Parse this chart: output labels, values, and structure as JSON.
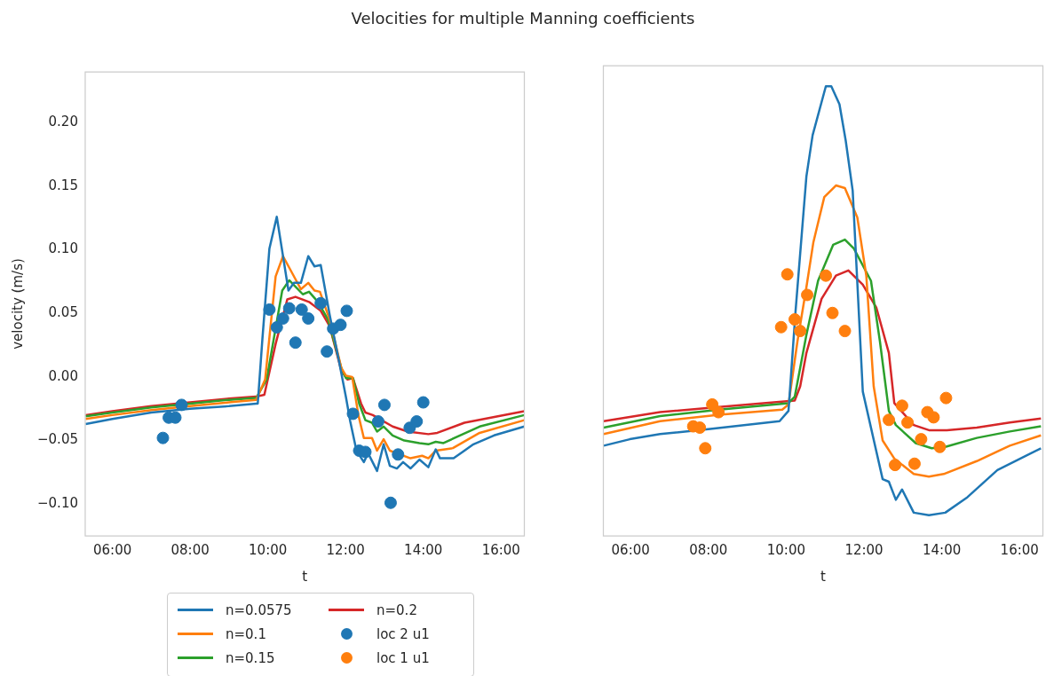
{
  "chart_data": [
    {
      "type": "line",
      "title": "Velocities for multiple Manning coefficients",
      "xlabel": "t",
      "ylabel": "velocity (m/s)",
      "xlim": [
        5.3,
        16.6
      ],
      "ylim": [
        -0.125,
        0.24
      ],
      "xticks": [
        {
          "value": 6,
          "label": "06:00"
        },
        {
          "value": 8,
          "label": "08:00"
        },
        {
          "value": 10,
          "label": "10:00"
        },
        {
          "value": 12,
          "label": "12:00"
        },
        {
          "value": 14,
          "label": "14:00"
        },
        {
          "value": 16,
          "label": "16:00"
        }
      ],
      "yticks": [
        {
          "value": -0.1,
          "label": "−0.10"
        },
        {
          "value": -0.05,
          "label": "−0.05"
        },
        {
          "value": 0,
          "label": "0.00"
        },
        {
          "value": 0.05,
          "label": "0.05"
        },
        {
          "value": 0.1,
          "label": "0.10"
        },
        {
          "value": 0.15,
          "label": "0.15"
        },
        {
          "value": 0.2,
          "label": "0.20"
        }
      ],
      "grid": false,
      "legend": "bottom",
      "line_style": "solid",
      "series": [
        {
          "name": "n=0.0575",
          "color": "#1f77b4",
          "x": [
            5.31,
            6,
            7,
            8,
            9,
            9.7,
            9.74,
            9.86,
            10.04,
            10.23,
            10.53,
            10.67,
            10.85,
            11.04,
            11.2,
            11.36,
            11.59,
            11.82,
            12.01,
            12.12,
            12.28,
            12.47,
            12.58,
            12.81,
            12.98,
            13.14,
            13.32,
            13.48,
            13.67,
            13.9,
            14.13,
            14.32,
            14.43,
            14.78,
            15.29,
            15.82,
            16.6
          ],
          "values": [
            -0.037,
            -0.033,
            -0.028,
            -0.025,
            -0.023,
            -0.021,
            -0.021,
            0.03,
            0.101,
            0.126,
            0.068,
            0.074,
            0.074,
            0.095,
            0.087,
            0.088,
            0.049,
            0.014,
            -0.016,
            -0.035,
            -0.058,
            -0.067,
            -0.06,
            -0.074,
            -0.053,
            -0.07,
            -0.072,
            -0.067,
            -0.072,
            -0.065,
            -0.071,
            -0.057,
            -0.064,
            -0.064,
            -0.053,
            -0.046,
            -0.039
          ]
        },
        {
          "name": "n=0.1",
          "color": "#ff7f0e",
          "x": [
            5.31,
            6,
            7,
            8,
            9,
            9.7,
            9.93,
            10.2,
            10.39,
            10.85,
            11.04,
            11.2,
            11.34,
            11.59,
            11.89,
            12.01,
            12.17,
            12.33,
            12.47,
            12.68,
            12.81,
            12.98,
            13.14,
            13.67,
            13.97,
            14.13,
            14.32,
            14.76,
            15.45,
            16.6
          ],
          "values": [
            -0.033,
            -0.03,
            -0.026,
            -0.023,
            -0.02,
            -0.018,
            -0.002,
            0.079,
            0.095,
            0.069,
            0.074,
            0.068,
            0.067,
            0.045,
            0.007,
            0.001,
            0,
            -0.03,
            -0.048,
            -0.048,
            -0.058,
            -0.049,
            -0.058,
            -0.064,
            -0.062,
            -0.064,
            -0.058,
            -0.056,
            -0.044,
            -0.034
          ]
        },
        {
          "name": "n=0.15",
          "color": "#2ca02c",
          "x": [
            5.31,
            6,
            7,
            8,
            9,
            9.7,
            9.97,
            10.37,
            10.55,
            10.9,
            11.06,
            11.29,
            11.55,
            11.89,
            12.01,
            12.19,
            12.35,
            12.51,
            12.68,
            12.81,
            12.98,
            13.21,
            13.51,
            13.9,
            14.13,
            14.32,
            14.52,
            15.45,
            16.6
          ],
          "values": [
            -0.031,
            -0.028,
            -0.024,
            -0.021,
            -0.018,
            -0.0165,
            -0.002,
            0.068,
            0.076,
            0.065,
            0.067,
            0.059,
            0.045,
            0.007,
            -0.001,
            -0.001,
            -0.021,
            -0.034,
            -0.036,
            -0.043,
            -0.039,
            -0.046,
            -0.05,
            -0.052,
            -0.053,
            -0.051,
            -0.052,
            -0.039,
            -0.03
          ]
        },
        {
          "name": "n=0.2",
          "color": "#d62728",
          "x": [
            5.31,
            6,
            7,
            8,
            9,
            9.7,
            9.91,
            10.2,
            10.5,
            10.71,
            11.06,
            11.36,
            11.59,
            11.89,
            12.05,
            12.19,
            12.4,
            12.51,
            12.7,
            13.21,
            13.6,
            14.13,
            14.36,
            15.06,
            16.6
          ],
          "values": [
            -0.03,
            -0.027,
            -0.023,
            -0.02,
            -0.017,
            -0.0155,
            -0.014,
            0.026,
            0.061,
            0.063,
            0.059,
            0.052,
            0.04,
            0.005,
            -0.002,
            -0.001,
            -0.021,
            -0.028,
            -0.03,
            -0.039,
            -0.043,
            -0.045,
            -0.044,
            -0.036,
            -0.027
          ]
        },
        {
          "name": "loc 2 u1",
          "type": "scatter",
          "marker": "circle",
          "color": "#1f77b4",
          "x": [
            7.3,
            7.45,
            7.62,
            7.78,
            10.04,
            10.23,
            10.39,
            10.55,
            10.71,
            10.87,
            11.04,
            11.36,
            11.52,
            11.68,
            11.87,
            12.03,
            12.19,
            12.35,
            12.51,
            12.84,
            13.0,
            13.16,
            13.35,
            13.65,
            13.83,
            14.0
          ],
          "values": [
            -0.048,
            -0.032,
            -0.032,
            -0.022,
            0.053,
            0.039,
            0.046,
            0.054,
            0.027,
            0.053,
            0.046,
            0.058,
            0.02,
            0.038,
            0.041,
            0.052,
            -0.029,
            -0.058,
            -0.059,
            -0.035,
            -0.022,
            -0.099,
            -0.061,
            -0.04,
            -0.035,
            -0.02
          ]
        }
      ]
    },
    {
      "type": "line",
      "xlabel": "t",
      "xlim": [
        5.3,
        16.6
      ],
      "ylim": [
        -0.125,
        0.24
      ],
      "tick_labels": "x",
      "xticks": [
        {
          "value": 6,
          "label": "06:00"
        },
        {
          "value": 8,
          "label": "08:00"
        },
        {
          "value": 10,
          "label": "10:00"
        },
        {
          "value": 12,
          "label": "12:00"
        },
        {
          "value": 14,
          "label": "14:00"
        },
        {
          "value": 16,
          "label": "16:00"
        }
      ],
      "grid": false,
      "line_style": "solid",
      "series": [
        {
          "color": "#1f77b4",
          "x": [
            5.31,
            5.98,
            6.76,
            8.05,
            9.83,
            10.06,
            10.24,
            10.52,
            10.68,
            11.02,
            11.16,
            11.37,
            11.53,
            11.71,
            11.97,
            12.48,
            12.64,
            12.82,
            12.98,
            13.28,
            13.67,
            14.09,
            14.66,
            15.43,
            16.55
          ],
          "values": [
            -0.055,
            -0.05,
            -0.046,
            -0.042,
            -0.036,
            -0.028,
            0.049,
            0.154,
            0.186,
            0.224,
            0.224,
            0.21,
            0.182,
            0.143,
            -0.013,
            -0.081,
            -0.083,
            -0.097,
            -0.089,
            -0.107,
            -0.109,
            -0.107,
            -0.095,
            -0.074,
            -0.057
          ]
        },
        {
          "color": "#ff7f0e",
          "x": [
            5.31,
            6.76,
            8.28,
            9.9,
            10.06,
            10.29,
            10.52,
            10.7,
            10.98,
            11.28,
            11.51,
            11.83,
            12.06,
            12.25,
            12.48,
            12.78,
            13.28,
            13.67,
            14.05,
            14.9,
            15.75,
            16.55
          ],
          "values": [
            -0.046,
            -0.036,
            -0.031,
            -0.027,
            -0.023,
            0.026,
            0.068,
            0.103,
            0.138,
            0.147,
            0.145,
            0.122,
            0.077,
            -0.009,
            -0.051,
            -0.065,
            -0.077,
            -0.079,
            -0.077,
            -0.067,
            -0.055,
            -0.047
          ]
        },
        {
          "color": "#2ca02c",
          "x": [
            5.31,
            6.76,
            8.28,
            10.06,
            10.22,
            10.52,
            10.82,
            11.21,
            11.51,
            11.74,
            12.18,
            12.41,
            12.64,
            12.82,
            13.33,
            13.74,
            14.09,
            14.9,
            15.75,
            16.55
          ],
          "values": [
            -0.041,
            -0.032,
            -0.027,
            -0.022,
            -0.017,
            0.031,
            0.073,
            0.101,
            0.105,
            0.098,
            0.073,
            0.026,
            -0.028,
            -0.039,
            -0.053,
            -0.057,
            -0.056,
            -0.049,
            -0.044,
            -0.04
          ]
        },
        {
          "color": "#d62728",
          "x": [
            5.31,
            6.76,
            8.28,
            10.22,
            10.36,
            10.52,
            10.91,
            11.28,
            11.6,
            11.97,
            12.32,
            12.64,
            12.78,
            13.28,
            13.67,
            14.13,
            14.9,
            15.75,
            16.55
          ],
          "values": [
            -0.036,
            -0.029,
            -0.025,
            -0.02,
            -0.009,
            0.017,
            0.059,
            0.077,
            0.081,
            0.07,
            0.052,
            0.017,
            -0.022,
            -0.039,
            -0.043,
            -0.043,
            -0.041,
            -0.037,
            -0.034
          ]
        },
        {
          "name": "loc 1 u1",
          "type": "scatter",
          "marker": "circle",
          "color": "#ff7f0e",
          "x": [
            7.61,
            7.78,
            7.92,
            8.1,
            8.26,
            9.87,
            10.03,
            10.22,
            10.36,
            10.54,
            11.02,
            11.19,
            11.51,
            12.64,
            12.98,
            13.12,
            12.8,
            13.3,
            13.47,
            13.63,
            13.79,
            13.95,
            14.11
          ],
          "values": [
            -0.04,
            -0.041,
            -0.057,
            -0.023,
            -0.029,
            0.037,
            0.078,
            0.043,
            0.034,
            0.062,
            0.077,
            0.048,
            0.034,
            -0.035,
            -0.024,
            -0.037,
            -0.07,
            -0.069,
            -0.05,
            -0.029,
            -0.033,
            -0.056,
            -0.018
          ]
        }
      ]
    }
  ]
}
